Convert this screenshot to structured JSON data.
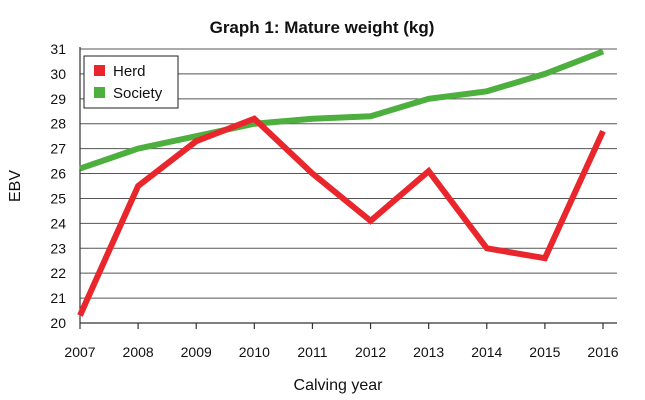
{
  "chart_data": {
    "type": "line",
    "title": "Graph 1: Mature weight (kg)",
    "xlabel": "Calving year",
    "ylabel": "EBV",
    "categories": [
      "2007",
      "2008",
      "2009",
      "2010",
      "2011",
      "2012",
      "2013",
      "2014",
      "2015",
      "2016"
    ],
    "ylim": [
      20,
      31
    ],
    "yticks": [
      "20",
      "21",
      "22",
      "23",
      "24",
      "25",
      "26",
      "27",
      "28",
      "29",
      "30",
      "31"
    ],
    "grid": "horizontal",
    "legend_position": "top-left",
    "series": [
      {
        "name": "Herd",
        "color": "#e8262b",
        "values": [
          20.3,
          25.5,
          27.3,
          28.2,
          26.0,
          24.1,
          26.1,
          23.0,
          22.6,
          27.7
        ]
      },
      {
        "name": "Society",
        "color": "#4caf3e",
        "values": [
          26.2,
          27.0,
          27.5,
          28.0,
          28.2,
          28.3,
          29.0,
          29.3,
          30.0,
          30.9
        ]
      }
    ]
  }
}
